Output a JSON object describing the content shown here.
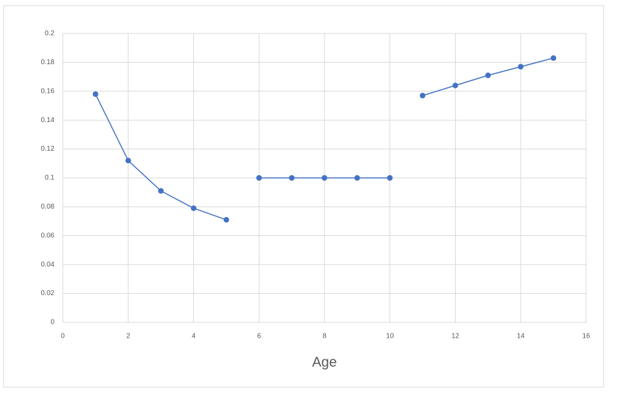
{
  "chart_data": {
    "type": "line",
    "xlabel": "Age",
    "series": [
      {
        "color": "#4472c4",
        "x": [
          1,
          2,
          3,
          4,
          5
        ],
        "values": [
          0.158,
          0.112,
          0.091,
          0.079,
          0.071
        ]
      },
      {
        "color": "#4472c4",
        "x": [
          6,
          7,
          8,
          9,
          10
        ],
        "values": [
          0.1,
          0.1,
          0.1,
          0.1,
          0.1
        ]
      },
      {
        "color": "#4472c4",
        "x": [
          11,
          12,
          13,
          14,
          15
        ],
        "values": [
          0.157,
          0.164,
          0.171,
          0.177,
          0.183
        ]
      }
    ],
    "xlim": [
      0,
      16
    ],
    "xticks": [
      0,
      2,
      4,
      6,
      8,
      10,
      12,
      14,
      16
    ],
    "ylim": [
      0,
      0.2
    ],
    "yticks": [
      0,
      0.02,
      0.04,
      0.06,
      0.08,
      0.1,
      0.12,
      0.14,
      0.16,
      0.18,
      0.2
    ],
    "grid": true
  }
}
